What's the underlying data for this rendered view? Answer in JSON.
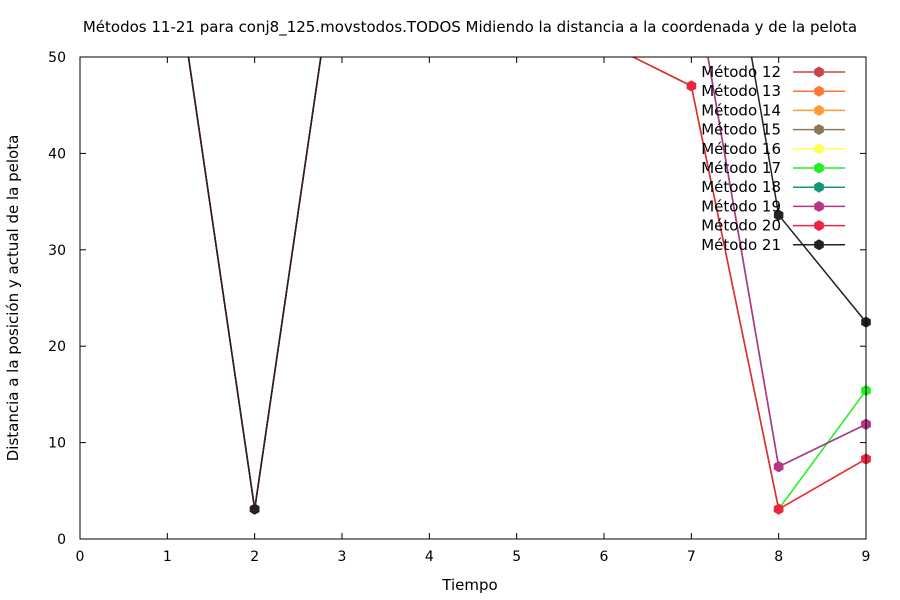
{
  "chart_data": {
    "type": "line",
    "title": "Métodos 11-21 para conj8_125.movstodos.TODOS Midiendo la distancia a la coordenada y de la pelota",
    "xlabel": "Tiempo",
    "ylabel": "Distancia a la posición y actual de la pelota",
    "xlim": [
      0,
      9
    ],
    "ylim": [
      0,
      50
    ],
    "xticks": [
      0,
      1,
      2,
      3,
      4,
      5,
      6,
      7,
      8,
      9
    ],
    "yticks": [
      0,
      10,
      20,
      30,
      40,
      50
    ],
    "grid": false,
    "legend_position": "top-right",
    "series": [
      {
        "name": "Método 12",
        "color": "#cc4444",
        "points": [
          [
            1,
            65
          ],
          [
            2,
            3.1
          ],
          [
            3,
            65
          ],
          [
            7,
            47
          ],
          [
            8,
            3.1
          ],
          [
            9,
            8.3
          ]
        ]
      },
      {
        "name": "Método 13",
        "color": "#ff7733",
        "points": [
          [
            1,
            65
          ],
          [
            2,
            3.1
          ],
          [
            3,
            65
          ],
          [
            7,
            47
          ],
          [
            8,
            3.1
          ],
          [
            9,
            8.3
          ]
        ]
      },
      {
        "name": "Método 14",
        "color": "#ff9933",
        "points": [
          [
            1,
            65
          ],
          [
            2,
            3.1
          ],
          [
            3,
            65
          ],
          [
            7,
            47
          ],
          [
            8,
            3.1
          ],
          [
            9,
            8.3
          ]
        ]
      },
      {
        "name": "Método 15",
        "color": "#8c7853",
        "points": [
          [
            1,
            65
          ],
          [
            2,
            3.1
          ],
          [
            3,
            65
          ],
          [
            7,
            60
          ],
          [
            8,
            7.5
          ],
          [
            9,
            11.9
          ]
        ]
      },
      {
        "name": "Método 16",
        "color": "#ffff55",
        "points": [
          [
            1,
            65
          ],
          [
            2,
            3.1
          ],
          [
            3,
            65
          ],
          [
            7,
            47
          ],
          [
            8,
            3.1
          ],
          [
            9,
            8.3
          ]
        ]
      },
      {
        "name": "Método 17",
        "color": "#22ee22",
        "points": [
          [
            1,
            65
          ],
          [
            2,
            3.1
          ],
          [
            3,
            65
          ],
          [
            7,
            47
          ],
          [
            8,
            3.1
          ],
          [
            9,
            15.4
          ]
        ]
      },
      {
        "name": "Método 18",
        "color": "#119977",
        "points": [
          [
            1,
            65
          ],
          [
            2,
            3.1
          ],
          [
            3,
            65
          ],
          [
            7,
            60
          ],
          [
            8,
            7.5
          ],
          [
            9,
            11.9
          ]
        ]
      },
      {
        "name": "Método 19",
        "color": "#bb3388",
        "points": [
          [
            1,
            65
          ],
          [
            2,
            3.1
          ],
          [
            3,
            65
          ],
          [
            7,
            60
          ],
          [
            8,
            7.5
          ],
          [
            9,
            11.9
          ]
        ]
      },
      {
        "name": "Método 20",
        "color": "#ee2244",
        "points": [
          [
            1,
            65
          ],
          [
            2,
            3.1
          ],
          [
            3,
            65
          ],
          [
            7,
            47
          ],
          [
            8,
            3.1
          ],
          [
            9,
            8.3
          ]
        ]
      },
      {
        "name": "Método 21",
        "color": "#222222",
        "points": [
          [
            1,
            65
          ],
          [
            2,
            3.1
          ],
          [
            3,
            65
          ],
          [
            7.5,
            60
          ],
          [
            8,
            33.6
          ],
          [
            9,
            22.5
          ]
        ]
      }
    ]
  }
}
